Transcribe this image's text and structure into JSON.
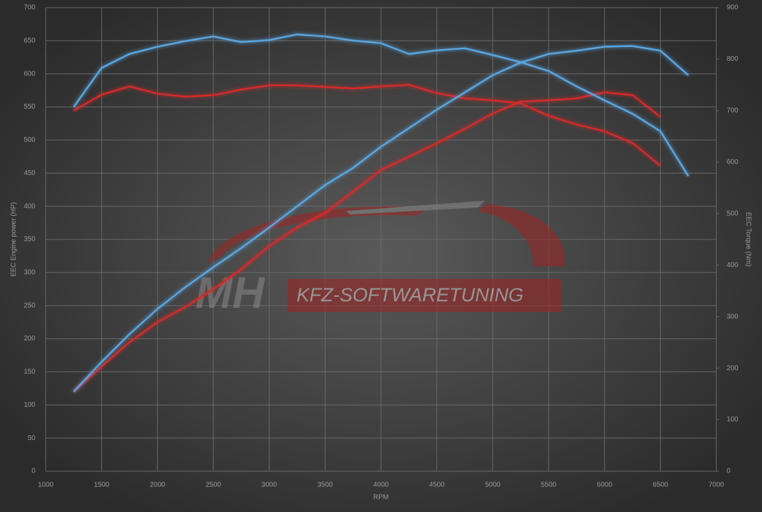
{
  "chart_data": {
    "type": "line",
    "x_label": "RPM",
    "y_label": "EEC Engine power (HP)",
    "y2_label": "EEC Torque (Nm)",
    "watermark": [
      "MH",
      "KFZ-SOFTWARETUNING"
    ],
    "x": [
      1250,
      1500,
      1750,
      2000,
      2250,
      2500,
      2750,
      3000,
      3250,
      3500,
      3750,
      4000,
      4250,
      4500,
      4750,
      5000,
      5250,
      5500,
      5750,
      6000,
      6250,
      6500,
      6750
    ],
    "xlim": [
      1000,
      7000
    ],
    "xticks": [
      1000,
      1500,
      2000,
      2500,
      3000,
      3500,
      4000,
      4500,
      5000,
      5500,
      6000,
      6500,
      7000
    ],
    "ylim": [
      0,
      700
    ],
    "yticks": [
      0,
      50,
      100,
      150,
      200,
      250,
      300,
      350,
      400,
      450,
      500,
      550,
      600,
      650,
      700
    ],
    "y2lim": [
      0,
      900
    ],
    "y2ticks": [
      0,
      100,
      200,
      300,
      400,
      500,
      600,
      700,
      800,
      900
    ],
    "grid": true,
    "series": [
      {
        "color": "#d42a2a",
        "axis": "y",
        "values": [
          120,
          158,
          195,
          225,
          248,
          275,
          305,
          340,
          368,
          390,
          422,
          455,
          475,
          495,
          517,
          540,
          558,
          560,
          563,
          572,
          568,
          535,
          null
        ]
      },
      {
        "color": "#d42a2a",
        "axis": "y2",
        "values": [
          700,
          731,
          747,
          733,
          727,
          730,
          741,
          749,
          749,
          746,
          743,
          747,
          750,
          734,
          724,
          720,
          714,
          690,
          673,
          660,
          637,
          593,
          null
        ]
      },
      {
        "color": "#5aa6e0",
        "axis": "y",
        "values": [
          120,
          165,
          207,
          245,
          278,
          308,
          337,
          368,
          400,
          432,
          458,
          490,
          518,
          546,
          572,
          598,
          617,
          630,
          635,
          641,
          642,
          635,
          598
        ]
      },
      {
        "color": "#5aa6e0",
        "axis": "y2",
        "values": [
          707,
          783,
          810,
          824,
          835,
          844,
          833,
          837,
          848,
          844,
          836,
          831,
          810,
          817,
          821,
          808,
          794,
          777,
          747,
          720,
          694,
          660,
          573
        ]
      }
    ]
  }
}
